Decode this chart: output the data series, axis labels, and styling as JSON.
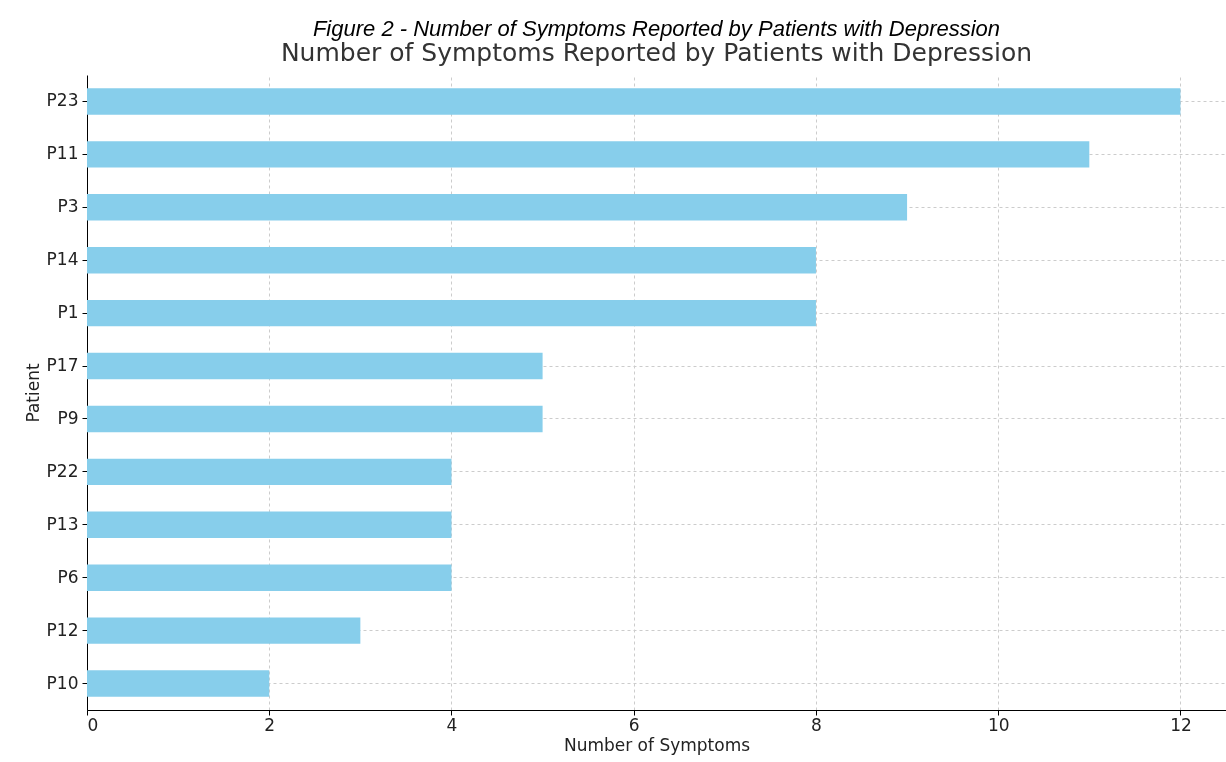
{
  "chart_data": {
    "type": "bar",
    "orientation": "horizontal",
    "title": "Figure 2 - Number of Symptoms Reported by Patients with Depression",
    "subtitle": "Number of Symptoms Reported by Patients with Depression",
    "xlabel": "Number of Symptoms",
    "ylabel": "Patient",
    "categories": [
      "P23",
      "P11",
      "P3",
      "P14",
      "P1",
      "P17",
      "P9",
      "P22",
      "P13",
      "P6",
      "P12",
      "P10"
    ],
    "values": [
      12,
      11,
      9,
      8,
      8,
      5,
      5,
      4,
      4,
      4,
      3,
      2
    ],
    "color": "#87ceeb",
    "xlim": [
      0,
      12.5
    ],
    "xticks": [
      0,
      2,
      4,
      6,
      8,
      10,
      12
    ],
    "grid": true
  }
}
